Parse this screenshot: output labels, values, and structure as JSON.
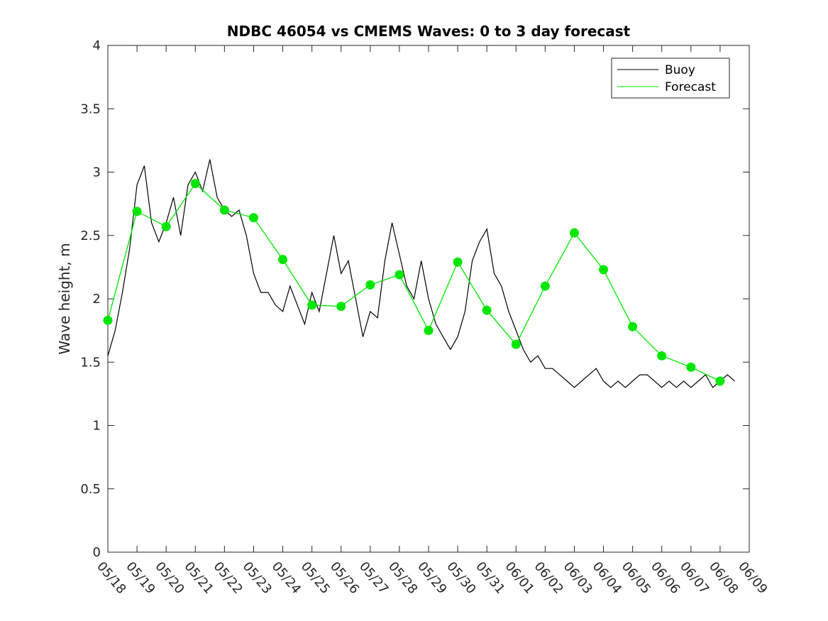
{
  "chart_data": {
    "type": "line",
    "title": "NDBC 46054 vs CMEMS Waves: 0 to 3 day forecast",
    "xlabel": "",
    "ylabel": "Wave height, m",
    "x_range": [
      0,
      22
    ],
    "ylim": [
      0,
      4
    ],
    "yticks": [
      "0",
      "0.5",
      "1",
      "1.5",
      "2",
      "2.5",
      "3",
      "3.5",
      "4"
    ],
    "xticks": [
      "05/18",
      "05/19",
      "05/20",
      "05/21",
      "05/22",
      "05/23",
      "05/24",
      "05/25",
      "05/26",
      "05/27",
      "05/28",
      "05/29",
      "05/30",
      "05/31",
      "06/01",
      "06/02",
      "06/03",
      "06/04",
      "06/05",
      "06/06",
      "06/07",
      "06/08",
      "06/09"
    ],
    "grid": false,
    "legend_position": "top-right",
    "legend": [
      {
        "label": "Buoy",
        "color": "#000000"
      },
      {
        "label": "Forecast",
        "color": "#00e600"
      }
    ],
    "colors": {
      "buoy": "#000000",
      "forecast": "#00e600"
    },
    "series": [
      {
        "name": "Buoy",
        "x": [
          0.0,
          0.25,
          0.5,
          0.75,
          1.0,
          1.25,
          1.5,
          1.75,
          2.0,
          2.25,
          2.5,
          2.75,
          3.0,
          3.25,
          3.5,
          3.75,
          4.0,
          4.25,
          4.5,
          4.75,
          5.0,
          5.25,
          5.5,
          5.75,
          6.0,
          6.25,
          6.5,
          6.75,
          7.0,
          7.25,
          7.5,
          7.75,
          8.0,
          8.25,
          8.5,
          8.75,
          9.0,
          9.25,
          9.5,
          9.75,
          10.0,
          10.25,
          10.5,
          10.75,
          11.0,
          11.25,
          11.5,
          11.75,
          12.0,
          12.25,
          12.5,
          12.75,
          13.0,
          13.25,
          13.5,
          13.75,
          14.0,
          14.25,
          14.5,
          14.75,
          15.0,
          15.25,
          15.5,
          15.75,
          16.0,
          16.25,
          16.5,
          16.75,
          17.0,
          17.25,
          17.5,
          17.75,
          18.0,
          18.25,
          18.5,
          18.75,
          19.0,
          19.25,
          19.5,
          19.75,
          20.0,
          20.25,
          20.5,
          20.75,
          21.0,
          21.25,
          21.5
        ],
        "values": [
          1.55,
          1.75,
          2.05,
          2.4,
          2.9,
          3.05,
          2.6,
          2.45,
          2.6,
          2.8,
          2.5,
          2.9,
          3.0,
          2.85,
          3.1,
          2.8,
          2.7,
          2.65,
          2.7,
          2.5,
          2.2,
          2.05,
          2.05,
          1.95,
          1.9,
          2.1,
          1.95,
          1.8,
          2.05,
          1.9,
          2.2,
          2.5,
          2.2,
          2.3,
          2.0,
          1.7,
          1.9,
          1.85,
          2.3,
          2.6,
          2.35,
          2.1,
          2.0,
          2.3,
          2.0,
          1.8,
          1.7,
          1.6,
          1.7,
          1.9,
          2.3,
          2.45,
          2.55,
          2.2,
          2.1,
          1.9,
          1.75,
          1.6,
          1.5,
          1.55,
          1.45,
          1.45,
          1.4,
          1.35,
          1.3,
          1.35,
          1.4,
          1.45,
          1.35,
          1.3,
          1.35,
          1.3,
          1.35,
          1.4,
          1.4,
          1.35,
          1.3,
          1.35,
          1.3,
          1.35,
          1.3,
          1.35,
          1.4,
          1.3,
          1.35,
          1.4,
          1.35
        ]
      },
      {
        "name": "Forecast",
        "x": [
          0,
          1,
          2,
          3,
          4,
          5,
          6,
          7,
          8,
          9,
          10,
          11,
          12,
          13,
          14,
          15,
          16,
          17,
          18,
          19,
          20,
          21
        ],
        "values": [
          1.83,
          2.69,
          2.57,
          2.91,
          2.7,
          2.64,
          2.31,
          1.95,
          1.94,
          2.11,
          2.19,
          1.75,
          2.29,
          1.91,
          1.64,
          2.1,
          2.52,
          2.23,
          1.78,
          1.55,
          1.46,
          1.35
        ]
      }
    ]
  }
}
